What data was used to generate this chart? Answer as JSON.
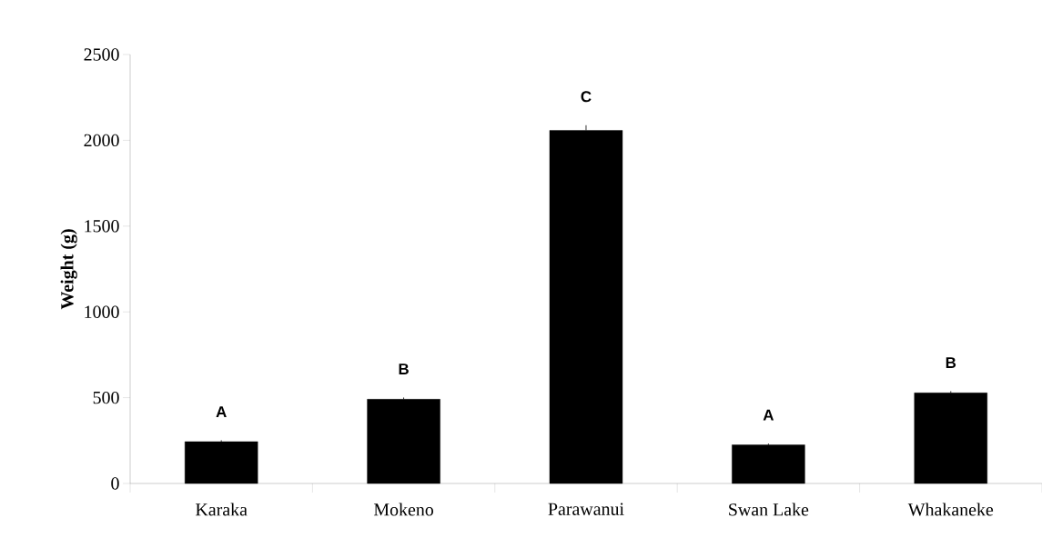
{
  "chart_data": {
    "type": "bar",
    "ylabel": "Weight (g)",
    "categories": [
      "Karaka",
      "Mokeno",
      "Parawanui",
      "Swan Lake",
      "Whakaneke"
    ],
    "values": [
      244,
      491,
      2058,
      225,
      528
    ],
    "errors": [
      8,
      10,
      30,
      8,
      10
    ],
    "color": "#000000",
    "ylim": [
      0,
      2500
    ],
    "yticks": [
      0,
      500,
      1000,
      1500,
      2000,
      2500
    ],
    "annotations": [
      "A",
      "B",
      "C",
      "A",
      "B"
    ]
  }
}
